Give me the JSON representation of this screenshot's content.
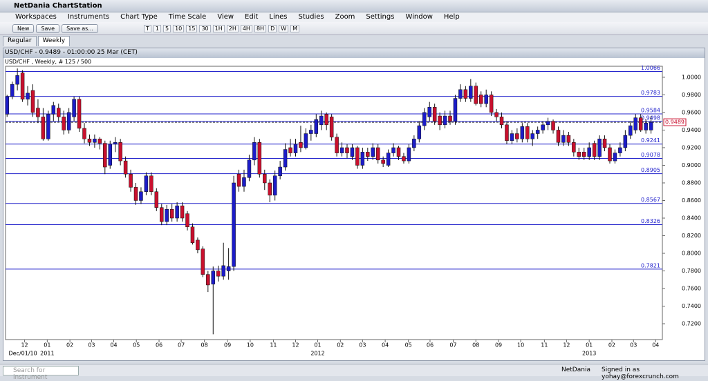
{
  "window": {
    "title": "NetDania ChartStation"
  },
  "menu": [
    "Workspaces",
    "Instruments",
    "Chart Type",
    "Time Scale",
    "View",
    "Edit",
    "Lines",
    "Studies",
    "Zoom",
    "Settings",
    "Window",
    "Help"
  ],
  "toolbar": {
    "buttons": [
      "New",
      "Save",
      "Save as..."
    ],
    "periods": [
      "T",
      "1",
      "5",
      "10",
      "15",
      "30",
      "1H",
      "2H",
      "4H",
      "8H",
      "D",
      "W",
      "M"
    ]
  },
  "tabs": [
    "Regular",
    "Weekly"
  ],
  "chart_window": {
    "title": "USD/CHF - 0.9489 - 01:00:00  25 Mar (CET)",
    "info": "USD/CHF , Weekly, # 125 / 500"
  },
  "chart_data": {
    "type": "candlestick",
    "up_color": "#1c1cc8",
    "down_color": "#c8102e",
    "ylim": [
      0.702,
      1.0125
    ],
    "xlim": [
      -0.3,
      127.2
    ],
    "yticks": [
      {
        "value": 1.0,
        "label": "1.0000"
      },
      {
        "value": 0.98,
        "label": "0.9800"
      },
      {
        "value": 0.96,
        "label": "0.9600"
      },
      {
        "value": 0.94,
        "label": "0.9400"
      },
      {
        "value": 0.92,
        "label": "0.9200"
      },
      {
        "value": 0.9,
        "label": "0.9000"
      },
      {
        "value": 0.88,
        "label": "0.8800"
      },
      {
        "value": 0.86,
        "label": "0.8600"
      },
      {
        "value": 0.84,
        "label": "0.8400"
      },
      {
        "value": 0.82,
        "label": "0.8200"
      },
      {
        "value": 0.8,
        "label": "0.8000"
      },
      {
        "value": 0.78,
        "label": "0.7800"
      },
      {
        "value": 0.76,
        "label": "0.7600"
      },
      {
        "value": 0.74,
        "label": "0.7400"
      },
      {
        "value": 0.72,
        "label": "0.7200"
      }
    ],
    "xticks": [
      {
        "value": 3.4,
        "label": "12"
      },
      {
        "value": 7.8,
        "label": "01"
      },
      {
        "value": 12.2,
        "label": "02"
      },
      {
        "value": 16.4,
        "label": "03"
      },
      {
        "value": 20.7,
        "label": "04"
      },
      {
        "value": 25.1,
        "label": "05"
      },
      {
        "value": 29.5,
        "label": "06"
      },
      {
        "value": 33.8,
        "label": "07"
      },
      {
        "value": 38.3,
        "label": "08"
      },
      {
        "value": 42.8,
        "label": "09"
      },
      {
        "value": 47.2,
        "label": "10"
      },
      {
        "value": 51.7,
        "label": "11"
      },
      {
        "value": 56.0,
        "label": "12"
      },
      {
        "value": 60.3,
        "label": "01"
      },
      {
        "value": 64.7,
        "label": "02"
      },
      {
        "value": 69.0,
        "label": "03"
      },
      {
        "value": 73.4,
        "label": "04"
      },
      {
        "value": 77.9,
        "label": "05"
      },
      {
        "value": 82.1,
        "label": "06"
      },
      {
        "value": 86.6,
        "label": "07"
      },
      {
        "value": 91.0,
        "label": "08"
      },
      {
        "value": 95.4,
        "label": "09"
      },
      {
        "value": 99.7,
        "label": "10"
      },
      {
        "value": 104.3,
        "label": "11"
      },
      {
        "value": 108.6,
        "label": "12"
      },
      {
        "value": 113.0,
        "label": "01"
      },
      {
        "value": 117.4,
        "label": "02"
      },
      {
        "value": 121.6,
        "label": "03"
      },
      {
        "value": 125.9,
        "label": "04"
      }
    ],
    "x_annotations": [
      {
        "value": 0.3,
        "label": "Dec/01/10"
      },
      {
        "value": 7.8,
        "label": "2011"
      },
      {
        "value": 60.3,
        "label": "2012"
      },
      {
        "value": 113.0,
        "label": "2013"
      }
    ],
    "levels": [
      {
        "value": 1.0066,
        "label": "1.0066"
      },
      {
        "value": 0.9783,
        "label": "0.9783"
      },
      {
        "value": 0.9584,
        "label": "0.9584"
      },
      {
        "value": 0.9498,
        "label": "0.9498"
      },
      {
        "value": 0.9241,
        "label": "0.9241"
      },
      {
        "value": 0.9078,
        "label": "0.9078"
      },
      {
        "value": 0.8905,
        "label": "0.8905"
      },
      {
        "value": 0.8567,
        "label": "0.8567"
      },
      {
        "value": 0.8326,
        "label": "0.8326"
      },
      {
        "value": 0.7821,
        "label": "0.7821"
      }
    ],
    "last": {
      "value": 0.9489,
      "label": "0.9489"
    },
    "candles": [
      [
        0.958,
        0.98,
        0.955,
        0.978
      ],
      [
        0.978,
        0.995,
        0.975,
        0.992
      ],
      [
        0.992,
        1.01,
        0.985,
        1.002
      ],
      [
        1.005,
        1.008,
        0.972,
        0.975
      ],
      [
        0.975,
        0.99,
        0.968,
        0.982
      ],
      [
        0.985,
        0.992,
        0.955,
        0.96
      ],
      [
        0.965,
        0.975,
        0.948,
        0.955
      ],
      [
        0.955,
        0.965,
        0.928,
        0.93
      ],
      [
        0.93,
        0.962,
        0.928,
        0.958
      ],
      [
        0.958,
        0.972,
        0.95,
        0.968
      ],
      [
        0.965,
        0.97,
        0.95,
        0.955
      ],
      [
        0.955,
        0.962,
        0.935,
        0.94
      ],
      [
        0.94,
        0.965,
        0.936,
        0.96
      ],
      [
        0.955,
        0.978,
        0.95,
        0.975
      ],
      [
        0.975,
        0.978,
        0.938,
        0.942
      ],
      [
        0.942,
        0.948,
        0.925,
        0.93
      ],
      [
        0.93,
        0.935,
        0.922,
        0.926
      ],
      [
        0.926,
        0.935,
        0.92,
        0.93
      ],
      [
        0.93,
        0.932,
        0.918,
        0.925
      ],
      [
        0.925,
        0.928,
        0.89,
        0.898
      ],
      [
        0.9,
        0.928,
        0.896,
        0.924
      ],
      [
        0.924,
        0.932,
        0.915,
        0.926
      ],
      [
        0.926,
        0.93,
        0.9,
        0.905
      ],
      [
        0.905,
        0.91,
        0.886,
        0.89
      ],
      [
        0.89,
        0.895,
        0.87,
        0.875
      ],
      [
        0.875,
        0.88,
        0.855,
        0.86
      ],
      [
        0.86,
        0.875,
        0.856,
        0.87
      ],
      [
        0.87,
        0.892,
        0.866,
        0.888
      ],
      [
        0.888,
        0.892,
        0.866,
        0.87
      ],
      [
        0.87,
        0.874,
        0.848,
        0.852
      ],
      [
        0.852,
        0.856,
        0.832,
        0.836
      ],
      [
        0.836,
        0.855,
        0.832,
        0.85
      ],
      [
        0.85,
        0.856,
        0.836,
        0.84
      ],
      [
        0.84,
        0.858,
        0.836,
        0.854
      ],
      [
        0.854,
        0.858,
        0.836,
        0.84
      ],
      [
        0.845,
        0.848,
        0.826,
        0.83
      ],
      [
        0.83,
        0.834,
        0.81,
        0.812
      ],
      [
        0.815,
        0.818,
        0.8,
        0.804
      ],
      [
        0.805,
        0.808,
        0.773,
        0.776
      ],
      [
        0.776,
        0.78,
        0.756,
        0.764
      ],
      [
        0.765,
        0.785,
        0.708,
        0.78
      ],
      [
        0.78,
        0.786,
        0.768,
        0.774
      ],
      [
        0.774,
        0.812,
        0.77,
        0.786
      ],
      [
        0.78,
        0.806,
        0.77,
        0.785
      ],
      [
        0.785,
        0.888,
        0.78,
        0.88
      ],
      [
        0.89,
        0.895,
        0.87,
        0.876
      ],
      [
        0.876,
        0.895,
        0.87,
        0.886
      ],
      [
        0.886,
        0.912,
        0.882,
        0.906
      ],
      [
        0.906,
        0.932,
        0.9,
        0.926
      ],
      [
        0.926,
        0.93,
        0.886,
        0.89
      ],
      [
        0.89,
        0.895,
        0.872,
        0.88
      ],
      [
        0.88,
        0.884,
        0.858,
        0.866
      ],
      [
        0.866,
        0.894,
        0.86,
        0.888
      ],
      [
        0.888,
        0.905,
        0.884,
        0.898
      ],
      [
        0.898,
        0.925,
        0.894,
        0.918
      ],
      [
        0.92,
        0.93,
        0.91,
        0.914
      ],
      [
        0.914,
        0.93,
        0.91,
        0.924
      ],
      [
        0.926,
        0.945,
        0.915,
        0.92
      ],
      [
        0.92,
        0.942,
        0.918,
        0.936
      ],
      [
        0.936,
        0.946,
        0.928,
        0.94
      ],
      [
        0.936,
        0.958,
        0.932,
        0.952
      ],
      [
        0.946,
        0.962,
        0.94,
        0.956
      ],
      [
        0.958,
        0.96,
        0.94,
        0.946
      ],
      [
        0.955,
        0.958,
        0.928,
        0.932
      ],
      [
        0.932,
        0.936,
        0.91,
        0.914
      ],
      [
        0.914,
        0.926,
        0.91,
        0.92
      ],
      [
        0.92,
        0.924,
        0.908,
        0.914
      ],
      [
        0.91,
        0.924,
        0.906,
        0.92
      ],
      [
        0.92,
        0.922,
        0.896,
        0.9
      ],
      [
        0.9,
        0.92,
        0.896,
        0.915
      ],
      [
        0.915,
        0.92,
        0.905,
        0.91
      ],
      [
        0.91,
        0.925,
        0.906,
        0.92
      ],
      [
        0.92,
        0.924,
        0.902,
        0.906
      ],
      [
        0.906,
        0.91,
        0.898,
        0.902
      ],
      [
        0.9,
        0.918,
        0.898,
        0.914
      ],
      [
        0.914,
        0.925,
        0.91,
        0.92
      ],
      [
        0.92,
        0.922,
        0.906,
        0.91
      ],
      [
        0.91,
        0.914,
        0.902,
        0.905
      ],
      [
        0.905,
        0.924,
        0.902,
        0.92
      ],
      [
        0.92,
        0.934,
        0.916,
        0.93
      ],
      [
        0.93,
        0.95,
        0.926,
        0.945
      ],
      [
        0.945,
        0.965,
        0.94,
        0.96
      ],
      [
        0.955,
        0.972,
        0.95,
        0.966
      ],
      [
        0.966,
        0.97,
        0.946,
        0.95
      ],
      [
        0.956,
        0.96,
        0.94,
        0.946
      ],
      [
        0.946,
        0.962,
        0.942,
        0.956
      ],
      [
        0.956,
        0.962,
        0.946,
        0.95
      ],
      [
        0.95,
        0.98,
        0.946,
        0.976
      ],
      [
        0.976,
        0.992,
        0.972,
        0.986
      ],
      [
        0.986,
        0.99,
        0.972,
        0.976
      ],
      [
        0.976,
        0.998,
        0.972,
        0.99
      ],
      [
        0.99,
        0.994,
        0.968,
        0.97
      ],
      [
        0.98,
        0.984,
        0.966,
        0.97
      ],
      [
        0.97,
        0.986,
        0.966,
        0.98
      ],
      [
        0.98,
        0.984,
        0.956,
        0.96
      ],
      [
        0.96,
        0.964,
        0.95,
        0.955
      ],
      [
        0.955,
        0.96,
        0.942,
        0.946
      ],
      [
        0.946,
        0.95,
        0.924,
        0.928
      ],
      [
        0.928,
        0.94,
        0.924,
        0.936
      ],
      [
        0.936,
        0.942,
        0.926,
        0.93
      ],
      [
        0.93,
        0.948,
        0.926,
        0.944
      ],
      [
        0.944,
        0.948,
        0.926,
        0.93
      ],
      [
        0.93,
        0.94,
        0.922,
        0.936
      ],
      [
        0.936,
        0.944,
        0.93,
        0.94
      ],
      [
        0.94,
        0.95,
        0.936,
        0.946
      ],
      [
        0.946,
        0.954,
        0.94,
        0.95
      ],
      [
        0.95,
        0.952,
        0.936,
        0.94
      ],
      [
        0.94,
        0.944,
        0.922,
        0.926
      ],
      [
        0.926,
        0.94,
        0.922,
        0.934
      ],
      [
        0.934,
        0.938,
        0.922,
        0.926
      ],
      [
        0.926,
        0.93,
        0.91,
        0.915
      ],
      [
        0.915,
        0.92,
        0.906,
        0.91
      ],
      [
        0.915,
        0.92,
        0.906,
        0.91
      ],
      [
        0.91,
        0.926,
        0.906,
        0.92
      ],
      [
        0.925,
        0.928,
        0.906,
        0.91
      ],
      [
        0.91,
        0.934,
        0.906,
        0.93
      ],
      [
        0.93,
        0.934,
        0.916,
        0.92
      ],
      [
        0.92,
        0.924,
        0.902,
        0.905
      ],
      [
        0.905,
        0.918,
        0.902,
        0.914
      ],
      [
        0.914,
        0.926,
        0.91,
        0.92
      ],
      [
        0.92,
        0.94,
        0.916,
        0.934
      ],
      [
        0.934,
        0.95,
        0.93,
        0.945
      ],
      [
        0.94,
        0.958,
        0.936,
        0.954
      ],
      [
        0.954,
        0.958,
        0.938,
        0.94
      ],
      [
        0.94,
        0.952,
        0.936,
        0.948
      ],
      [
        0.94,
        0.956,
        0.936,
        0.9489
      ]
    ]
  },
  "status": {
    "search": "Search for instrument",
    "brand": "NetDania",
    "signed_in": "Signed in as yohay@forexcrunch.com"
  }
}
